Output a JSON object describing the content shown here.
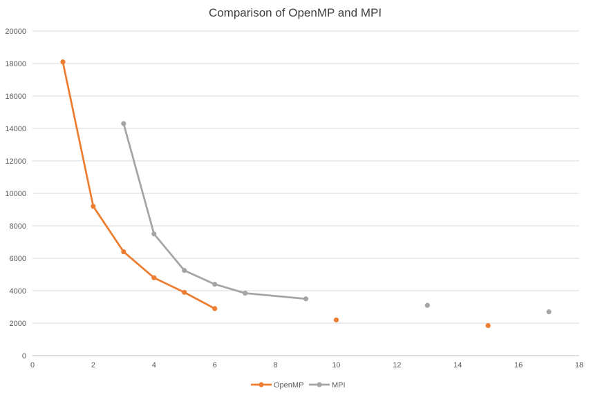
{
  "chart_data": {
    "type": "line",
    "title": "Comparison of OpenMP and MPI",
    "xlabel": "",
    "ylabel": "",
    "xlim": [
      0,
      18
    ],
    "ylim": [
      0,
      20000
    ],
    "x_ticks": [
      0,
      2,
      4,
      6,
      8,
      10,
      12,
      14,
      16,
      18
    ],
    "y_ticks": [
      0,
      2000,
      4000,
      6000,
      8000,
      10000,
      12000,
      14000,
      16000,
      18000,
      20000
    ],
    "grid": "horizontal",
    "legend_position": "bottom",
    "series": [
      {
        "name": "OpenMP",
        "color": "#ED7D31",
        "points": [
          {
            "x": 1,
            "y": 18100
          },
          {
            "x": 2,
            "y": 9200
          },
          {
            "x": 3,
            "y": 6400
          },
          {
            "x": 4,
            "y": 4800
          },
          {
            "x": 5,
            "y": 3900
          },
          {
            "x": 6,
            "y": 2900
          },
          {
            "x": 10,
            "y": 2200
          },
          {
            "x": 15,
            "y": 1850
          }
        ],
        "connected_through_x": 6
      },
      {
        "name": "MPI",
        "color": "#A5A5A5",
        "points": [
          {
            "x": 3,
            "y": 14300
          },
          {
            "x": 4,
            "y": 7500
          },
          {
            "x": 5,
            "y": 5250
          },
          {
            "x": 6,
            "y": 4400
          },
          {
            "x": 7,
            "y": 3850
          },
          {
            "x": 9,
            "y": 3500
          },
          {
            "x": 13,
            "y": 3100
          },
          {
            "x": 17,
            "y": 2700
          }
        ],
        "connected_through_x": 9
      }
    ]
  }
}
